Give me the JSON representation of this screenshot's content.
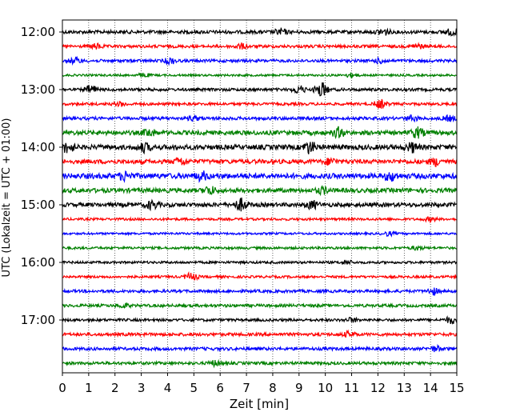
{
  "chart_data": {
    "type": "line",
    "title": "",
    "xlabel": "Zeit  [min]",
    "ylabel": "UTC (Lokalzeit = UTC + 01:00)",
    "xlim": [
      0,
      15
    ],
    "xticks": [
      0,
      1,
      2,
      3,
      4,
      5,
      6,
      7,
      8,
      9,
      10,
      11,
      12,
      13,
      14,
      15
    ],
    "x_tick_labels": [
      "0",
      "1",
      "2",
      "3",
      "4",
      "5",
      "6",
      "7",
      "8",
      "9",
      "10",
      "11",
      "12",
      "13",
      "14",
      "15"
    ],
    "grid": "vertical-dotted",
    "trace_interval_min": 15,
    "y_tick_labels": [
      {
        "time": "12:00",
        "trace_index": 0
      },
      {
        "time": "13:00",
        "trace_index": 4
      },
      {
        "time": "14:00",
        "trace_index": 8
      },
      {
        "time": "15:00",
        "trace_index": 12
      },
      {
        "time": "16:00",
        "trace_index": 16
      },
      {
        "time": "17:00",
        "trace_index": 20
      }
    ],
    "color_cycle": [
      "#000000",
      "#ff0000",
      "#0000ff",
      "#008000"
    ],
    "traces": [
      {
        "start": "12:00",
        "color": "#000000",
        "amplitude": 0.35,
        "bursts": [
          [
            8.3,
            0.6
          ],
          [
            12.2,
            0.7
          ],
          [
            14.8,
            0.6
          ]
        ]
      },
      {
        "start": "12:15",
        "color": "#ff0000",
        "amplitude": 0.3,
        "bursts": [
          [
            1.3,
            0.5
          ],
          [
            6.8,
            0.5
          ],
          [
            13.5,
            0.5
          ]
        ]
      },
      {
        "start": "12:30",
        "color": "#0000ff",
        "amplitude": 0.3,
        "bursts": [
          [
            0.5,
            0.6
          ],
          [
            4.1,
            0.6
          ],
          [
            12.1,
            0.5
          ]
        ]
      },
      {
        "start": "12:45",
        "color": "#008000",
        "amplitude": 0.22,
        "bursts": [
          [
            3.1,
            0.4
          ],
          [
            11.0,
            0.4
          ]
        ]
      },
      {
        "start": "13:00",
        "color": "#000000",
        "amplitude": 0.3,
        "bursts": [
          [
            1.1,
            0.9
          ],
          [
            9.0,
            0.8
          ],
          [
            9.85,
            1.6
          ]
        ]
      },
      {
        "start": "13:15",
        "color": "#ff0000",
        "amplitude": 0.28,
        "bursts": [
          [
            2.2,
            0.4
          ],
          [
            12.1,
            0.9
          ]
        ]
      },
      {
        "start": "13:30",
        "color": "#0000ff",
        "amplitude": 0.32,
        "bursts": [
          [
            5.0,
            0.4
          ],
          [
            13.3,
            0.5
          ],
          [
            14.7,
            0.5
          ]
        ]
      },
      {
        "start": "13:45",
        "color": "#008000",
        "amplitude": 0.45,
        "bursts": [
          [
            3.3,
            0.7
          ],
          [
            10.5,
            0.9
          ],
          [
            13.5,
            1.0
          ]
        ]
      },
      {
        "start": "14:00",
        "color": "#000000",
        "amplitude": 0.5,
        "bursts": [
          [
            0.2,
            1.0
          ],
          [
            3.1,
            0.8
          ],
          [
            9.4,
            1.2
          ],
          [
            13.3,
            0.9
          ]
        ]
      },
      {
        "start": "14:15",
        "color": "#ff0000",
        "amplitude": 0.45,
        "bursts": [
          [
            4.5,
            0.7
          ],
          [
            10.2,
            0.6
          ],
          [
            14.2,
            0.7
          ]
        ]
      },
      {
        "start": "14:30",
        "color": "#0000ff",
        "amplitude": 0.55,
        "bursts": [
          [
            2.4,
            0.8
          ],
          [
            5.3,
            0.8
          ],
          [
            12.5,
            0.8
          ]
        ]
      },
      {
        "start": "14:45",
        "color": "#008000",
        "amplitude": 0.45,
        "bursts": [
          [
            5.6,
            0.8
          ],
          [
            9.9,
            0.6
          ]
        ]
      },
      {
        "start": "15:00",
        "color": "#000000",
        "amplitude": 0.42,
        "bursts": [
          [
            3.4,
            0.8
          ],
          [
            6.8,
            1.2
          ],
          [
            9.5,
            0.8
          ]
        ]
      },
      {
        "start": "15:15",
        "color": "#ff0000",
        "amplitude": 0.25,
        "bursts": [
          [
            14.0,
            0.4
          ]
        ]
      },
      {
        "start": "15:30",
        "color": "#0000ff",
        "amplitude": 0.22,
        "bursts": [
          [
            12.4,
            0.4
          ]
        ]
      },
      {
        "start": "15:45",
        "color": "#008000",
        "amplitude": 0.25,
        "bursts": [
          [
            13.5,
            0.4
          ]
        ]
      },
      {
        "start": "16:00",
        "color": "#000000",
        "amplitude": 0.25,
        "bursts": [
          [
            10.8,
            0.4
          ]
        ]
      },
      {
        "start": "16:15",
        "color": "#ff0000",
        "amplitude": 0.25,
        "bursts": [
          [
            4.9,
            0.8
          ]
        ]
      },
      {
        "start": "16:30",
        "color": "#0000ff",
        "amplitude": 0.3,
        "bursts": [
          [
            14.1,
            0.6
          ]
        ]
      },
      {
        "start": "16:45",
        "color": "#008000",
        "amplitude": 0.3,
        "bursts": [
          [
            2.3,
            0.4
          ]
        ]
      },
      {
        "start": "17:00",
        "color": "#000000",
        "amplitude": 0.28,
        "bursts": [
          [
            11.0,
            0.4
          ],
          [
            14.8,
            0.7
          ]
        ]
      },
      {
        "start": "17:15",
        "color": "#ff0000",
        "amplitude": 0.32,
        "bursts": [
          [
            10.9,
            0.5
          ]
        ]
      },
      {
        "start": "17:30",
        "color": "#0000ff",
        "amplitude": 0.32,
        "bursts": [
          [
            14.2,
            0.5
          ]
        ]
      },
      {
        "start": "17:45",
        "color": "#008000",
        "amplitude": 0.3,
        "bursts": [
          [
            5.8,
            0.5
          ]
        ]
      }
    ]
  }
}
